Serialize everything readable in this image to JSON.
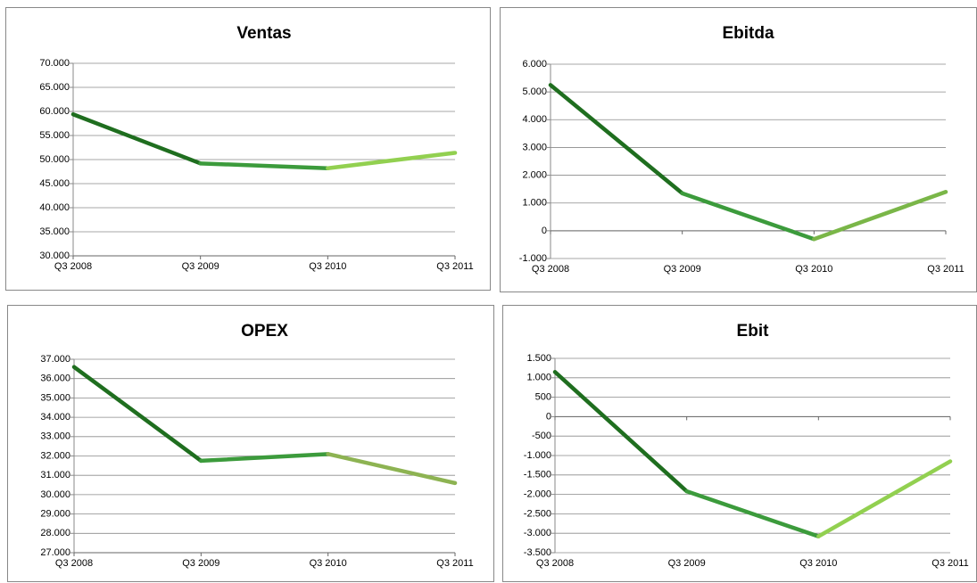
{
  "chart_data": [
    {
      "type": "line",
      "title": "Ventas",
      "categories": [
        "Q3 2008",
        "Q3 2009",
        "Q3 2010",
        "Q3 2011"
      ],
      "values": [
        59400,
        49200,
        48200,
        51400
      ],
      "segment_colors": [
        "#1f6e1f",
        "#3c9b3c",
        "#92d050"
      ],
      "ylim": [
        30000,
        70000
      ],
      "grid": true,
      "yticks": [
        {
          "value": 30000,
          "label": "30.000"
        },
        {
          "value": 35000,
          "label": "35.000"
        },
        {
          "value": 40000,
          "label": "40.000"
        },
        {
          "value": 45000,
          "label": "45.000"
        },
        {
          "value": 50000,
          "label": "50.000"
        },
        {
          "value": 55000,
          "label": "55.000"
        },
        {
          "value": 60000,
          "label": "60.000"
        },
        {
          "value": 65000,
          "label": "65.000"
        },
        {
          "value": 70000,
          "label": "70.000"
        }
      ]
    },
    {
      "type": "line",
      "title": "Ebitda",
      "categories": [
        "Q3 2008",
        "Q3 2009",
        "Q3 2010",
        "Q3 2011"
      ],
      "values": [
        5250,
        1350,
        -300,
        1400
      ],
      "segment_colors": [
        "#1f6e1f",
        "#3c9b3c",
        "#7ab648"
      ],
      "ylim": [
        -1000,
        6000
      ],
      "grid": true,
      "yticks": [
        {
          "value": -1000,
          "label": "-1.000"
        },
        0,
        {
          "value": 1000,
          "label": "1.000"
        },
        {
          "value": 2000,
          "label": "2.000"
        },
        {
          "value": 3000,
          "label": "3.000"
        },
        {
          "value": 4000,
          "label": "4.000"
        },
        {
          "value": 5000,
          "label": "5.000"
        },
        {
          "value": 6000,
          "label": "6.000"
        }
      ]
    },
    {
      "type": "line",
      "title": "OPEX",
      "categories": [
        "Q3 2008",
        "Q3 2009",
        "Q3 2010",
        "Q3 2011"
      ],
      "values": [
        36600,
        31750,
        32100,
        30600
      ],
      "segment_colors": [
        "#1f6e1f",
        "#3c9b3c",
        "#8db352"
      ],
      "ylim": [
        27000,
        37000
      ],
      "grid": true,
      "yticks": [
        {
          "value": 27000,
          "label": "27.000"
        },
        {
          "value": 28000,
          "label": "28.000"
        },
        {
          "value": 29000,
          "label": "29.000"
        },
        {
          "value": 30000,
          "label": "30.000"
        },
        {
          "value": 31000,
          "label": "31.000"
        },
        {
          "value": 32000,
          "label": "32.000"
        },
        {
          "value": 33000,
          "label": "33.000"
        },
        {
          "value": 34000,
          "label": "34.000"
        },
        {
          "value": 35000,
          "label": "35.000"
        },
        {
          "value": 36000,
          "label": "36.000"
        },
        {
          "value": 37000,
          "label": "37.000"
        }
      ]
    },
    {
      "type": "line",
      "title": "Ebit",
      "categories": [
        "Q3 2008",
        "Q3 2009",
        "Q3 2010",
        "Q3 2011"
      ],
      "values": [
        1150,
        -1920,
        -3080,
        -1150
      ],
      "segment_colors": [
        "#1f6e1f",
        "#3c9b3c",
        "#92d050"
      ],
      "ylim": [
        -3500,
        1500
      ],
      "grid": true,
      "yticks": [
        {
          "value": -3500,
          "label": "-3.500"
        },
        {
          "value": -3000,
          "label": "-3.000"
        },
        {
          "value": -2500,
          "label": "-2.500"
        },
        {
          "value": -2000,
          "label": "-2.000"
        },
        {
          "value": -1500,
          "label": "-1.500"
        },
        {
          "value": -1000,
          "label": "-1.000"
        },
        -500,
        0,
        500,
        {
          "value": 1000,
          "label": "1.000"
        },
        {
          "value": 1500,
          "label": "1.500"
        }
      ]
    }
  ]
}
